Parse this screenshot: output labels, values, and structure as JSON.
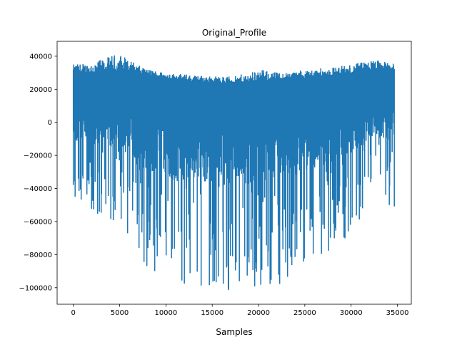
{
  "chart_data": {
    "type": "line",
    "title": "Original_Profile",
    "xlabel": "Samples",
    "ylabel": "",
    "xlim": [
      -1750,
      36500
    ],
    "ylim": [
      -110000,
      49000
    ],
    "x_ticks": [
      0,
      5000,
      10000,
      15000,
      20000,
      25000,
      30000,
      35000
    ],
    "x_tick_labels": [
      "0",
      "5000",
      "10000",
      "15000",
      "20000",
      "25000",
      "30000",
      "35000"
    ],
    "y_ticks": [
      -100000,
      -80000,
      -60000,
      -40000,
      -20000,
      0,
      20000,
      40000
    ],
    "y_tick_labels": [
      "−100000",
      "−80000",
      "−60000",
      "−40000",
      "−20000",
      "0",
      "20000",
      "40000"
    ],
    "grid": false,
    "legend": "none",
    "series": [
      {
        "color": "#1f77b4",
        "n_samples": 34700,
        "envelope": {
          "x": [
            0,
            2500,
            5000,
            7500,
            10000,
            12500,
            15000,
            17500,
            20000,
            22500,
            25000,
            27500,
            30000,
            32500,
            34700
          ],
          "upper": [
            35000,
            37000,
            42000,
            33000,
            30000,
            29000,
            28000,
            28000,
            32000,
            30000,
            32000,
            33000,
            35000,
            38000,
            36000
          ],
          "lower": [
            -53000,
            -58000,
            -60000,
            -86000,
            -97000,
            -100000,
            -101000,
            -102000,
            -100000,
            -101000,
            -90000,
            -80000,
            -68000,
            -45000,
            -54000
          ],
          "typical_upper": [
            30000,
            30000,
            31000,
            29000,
            27000,
            25000,
            24000,
            24000,
            25000,
            26000,
            27000,
            28000,
            30000,
            32000,
            32000
          ],
          "typical_lower": [
            10000,
            10000,
            8000,
            3000,
            0,
            -2000,
            -3000,
            -3000,
            -2000,
            0,
            2000,
            5000,
            8000,
            10000,
            12000
          ]
        }
      }
    ]
  }
}
